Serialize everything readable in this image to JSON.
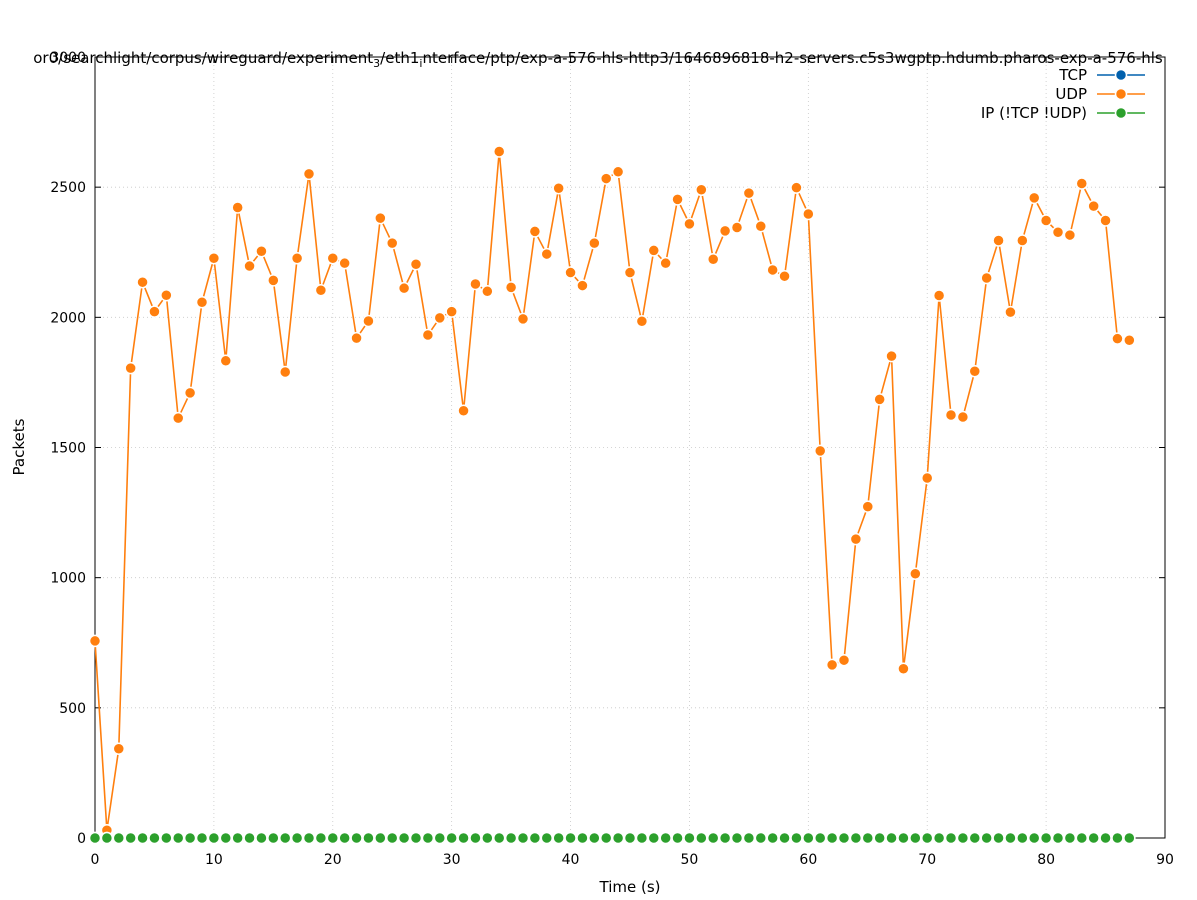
{
  "chart_data": {
    "type": "line",
    "title_parts": {
      "main": "or0/searchlight/corpus/wireguard/experiment",
      "sub1": "3",
      "mid": "/eth1",
      "sub2": "i",
      "tail": "nterface/ptp/exp-a-576-hls-http3/1646896818-h2-servers.c5s3wgptp.hdumb.pharos-exp-a-576-hls"
    },
    "xlabel": "Time (s)",
    "ylabel": "Packets",
    "xlim": [
      0,
      90
    ],
    "ylim": [
      0,
      3000
    ],
    "xticks": [
      0,
      10,
      20,
      30,
      40,
      50,
      60,
      70,
      80,
      90
    ],
    "yticks": [
      0,
      500,
      1000,
      1500,
      2000,
      2500,
      3000
    ],
    "grid": true,
    "legend_position": "top-right",
    "x": [
      0,
      1,
      2,
      3,
      4,
      5,
      6,
      7,
      8,
      9,
      10,
      11,
      12,
      13,
      14,
      15,
      16,
      17,
      18,
      19,
      20,
      21,
      22,
      23,
      24,
      25,
      26,
      27,
      28,
      29,
      30,
      31,
      32,
      33,
      34,
      35,
      36,
      37,
      38,
      39,
      40,
      41,
      42,
      43,
      44,
      45,
      46,
      47,
      48,
      49,
      50,
      51,
      52,
      53,
      54,
      55,
      56,
      57,
      58,
      59,
      60,
      61,
      62,
      63,
      64,
      65,
      66,
      67,
      68,
      69,
      70,
      71,
      72,
      73,
      74,
      75,
      76,
      77,
      78,
      79,
      80,
      81,
      82,
      83,
      84,
      85,
      86,
      87
    ],
    "series": [
      {
        "name": "TCP",
        "color": "#0060ad",
        "values": [
          0,
          0,
          0,
          0,
          0,
          0,
          0,
          0,
          0,
          0,
          0,
          0,
          0,
          0,
          0,
          0,
          0,
          0,
          0,
          0,
          0,
          0,
          0,
          0,
          0,
          0,
          0,
          0,
          0,
          0,
          0,
          0,
          0,
          0,
          0,
          0,
          0,
          0,
          0,
          0,
          0,
          0,
          0,
          0,
          0,
          0,
          0,
          0,
          0,
          0,
          0,
          0,
          0,
          0,
          0,
          0,
          0,
          0,
          0,
          0,
          0,
          0,
          0,
          0,
          0,
          0,
          0,
          0,
          0,
          0,
          0,
          0,
          0,
          0,
          0,
          0,
          0,
          0,
          0,
          0,
          0,
          0,
          0,
          0,
          0,
          0,
          0,
          0
        ]
      },
      {
        "name": "UDP",
        "color": "#ff7f0e",
        "values": [
          757,
          30,
          343,
          1805,
          2135,
          2022,
          2085,
          1613,
          1710,
          2058,
          2227,
          1833,
          2422,
          2197,
          2254,
          2142,
          1790,
          2227,
          2551,
          2104,
          2227,
          2208,
          1920,
          1986,
          2381,
          2285,
          2112,
          2204,
          1932,
          1998,
          2022,
          1641,
          2128,
          2100,
          2637,
          2115,
          1994,
          2330,
          2243,
          2496,
          2172,
          2122,
          2285,
          2533,
          2559,
          2172,
          1985,
          2257,
          2208,
          2453,
          2359,
          2490,
          2223,
          2332,
          2345,
          2477,
          2350,
          2182,
          2158,
          2498,
          2397,
          1487,
          665,
          683,
          1148,
          1273,
          1685,
          1851,
          650,
          1015,
          1383,
          2084,
          1625,
          1617,
          1793,
          2151,
          2295,
          2020,
          2295,
          2459,
          2372,
          2327,
          2316,
          2514,
          2427,
          2372,
          1918,
          1912
        ]
      },
      {
        "name": "IP (!TCP  !UDP)",
        "color": "#2ca02c",
        "values": [
          0,
          0,
          0,
          0,
          0,
          0,
          0,
          0,
          0,
          0,
          0,
          0,
          0,
          0,
          0,
          0,
          0,
          0,
          0,
          0,
          0,
          0,
          0,
          0,
          0,
          0,
          0,
          0,
          0,
          0,
          0,
          0,
          0,
          0,
          0,
          0,
          0,
          0,
          0,
          0,
          0,
          0,
          0,
          0,
          0,
          0,
          0,
          0,
          0,
          0,
          0,
          0,
          0,
          0,
          0,
          0,
          0,
          0,
          0,
          0,
          0,
          0,
          0,
          0,
          0,
          0,
          0,
          0,
          0,
          0,
          0,
          0,
          0,
          0,
          0,
          0,
          0,
          0,
          0,
          0,
          0,
          0,
          0,
          0,
          0,
          0,
          0,
          0
        ]
      }
    ]
  }
}
